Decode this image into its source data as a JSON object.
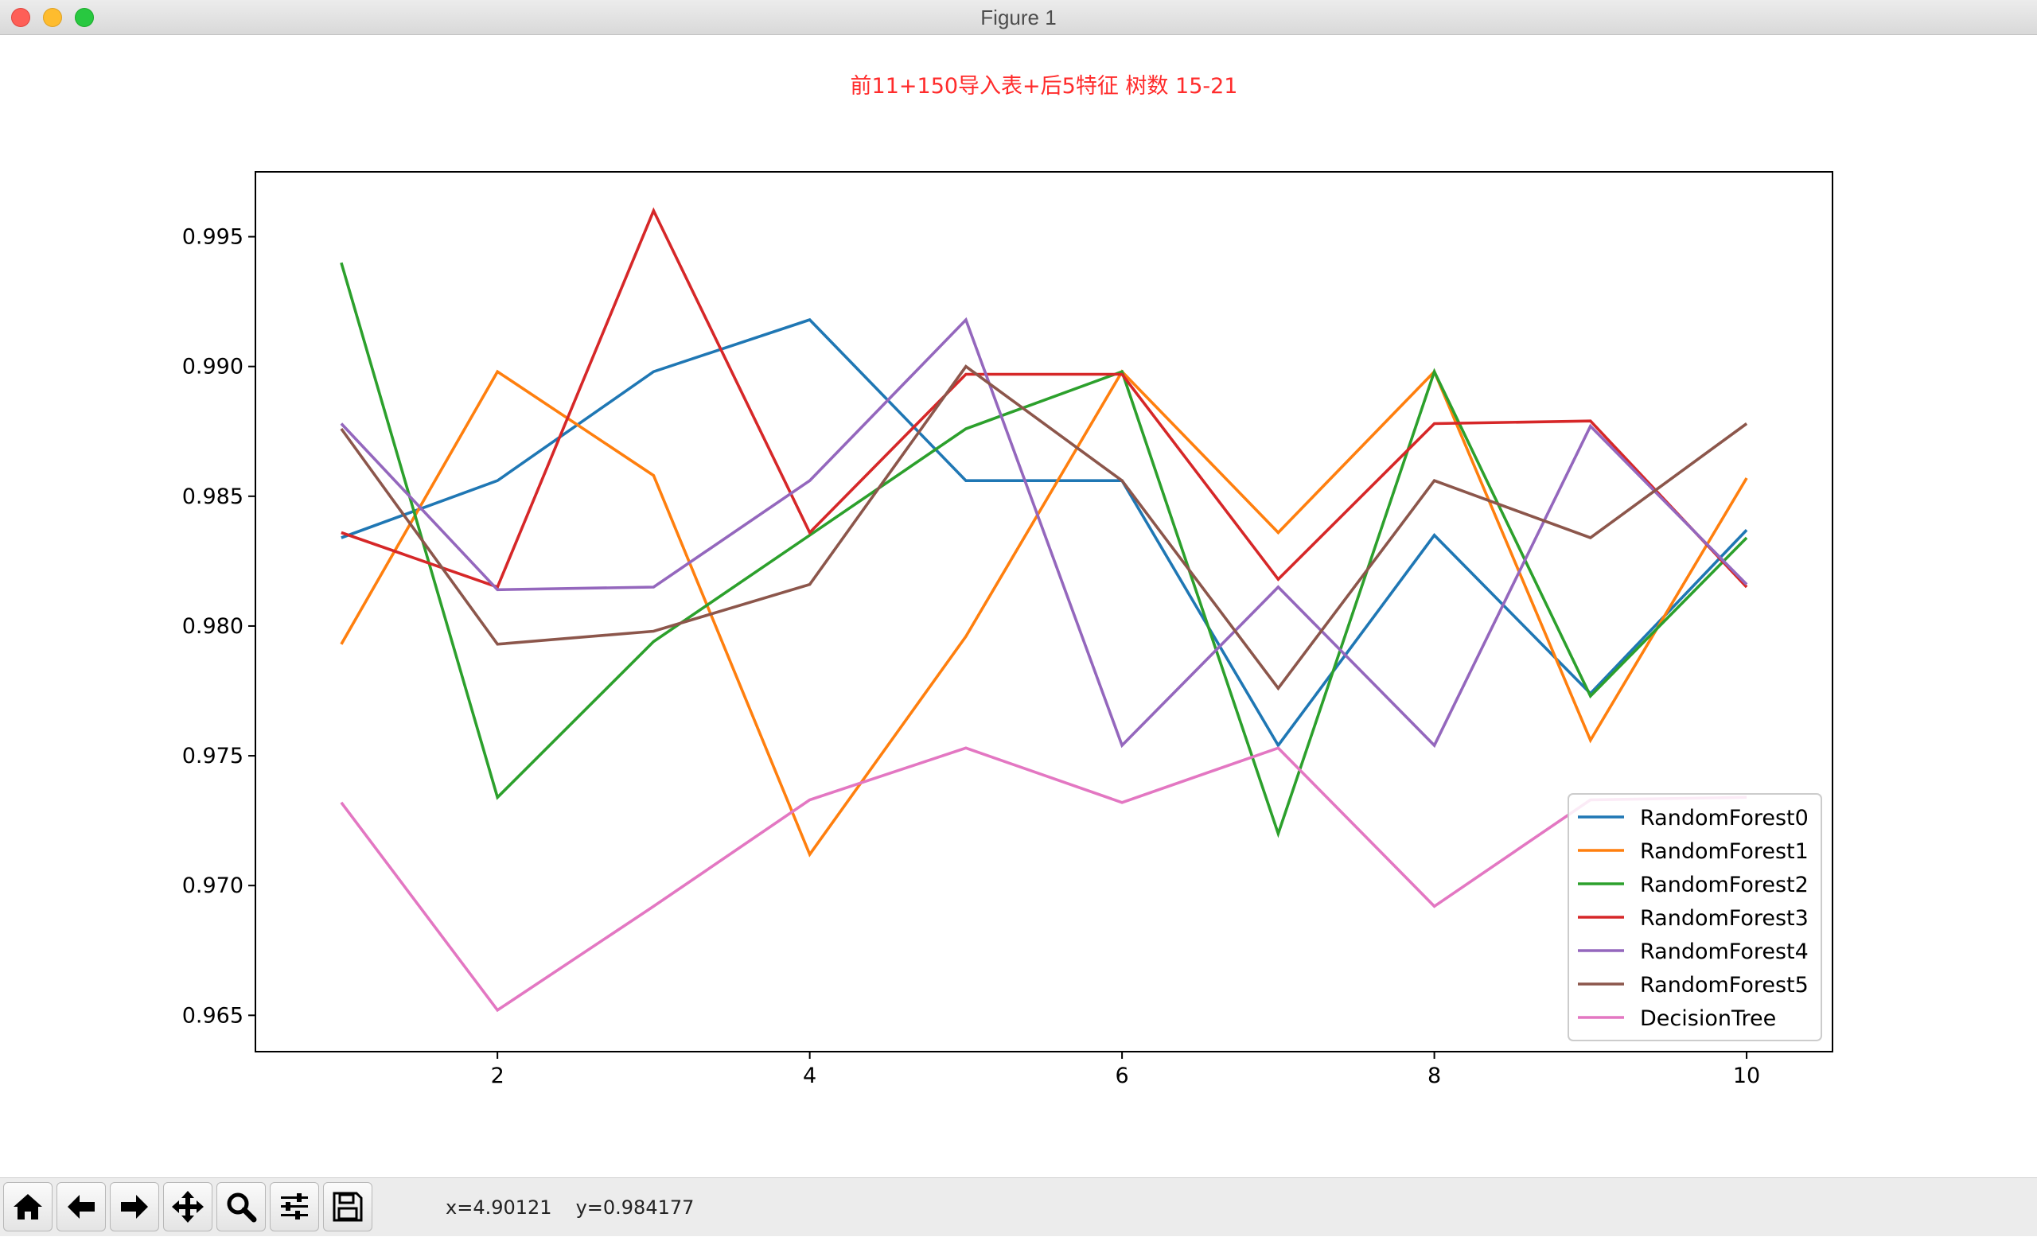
{
  "window": {
    "title": "Figure 1"
  },
  "toolbar": {
    "buttons": [
      {
        "name": "home-button",
        "icon": "home-icon"
      },
      {
        "name": "back-button",
        "icon": "arrow-left-icon"
      },
      {
        "name": "forward-button",
        "icon": "arrow-right-icon"
      },
      {
        "name": "pan-button",
        "icon": "move-icon"
      },
      {
        "name": "zoom-button",
        "icon": "magnifier-icon"
      },
      {
        "name": "configure-subplots-button",
        "icon": "sliders-icon"
      },
      {
        "name": "save-button",
        "icon": "floppy-disk-icon"
      }
    ],
    "x_readout": "x=4.90121",
    "y_readout": "y=0.984177"
  },
  "chart_data": {
    "type": "line",
    "title": "前11+150导入表+后5特征 树数 15-21",
    "title_color": "#ff2b2b",
    "xlabel": "",
    "ylabel": "",
    "x": [
      1,
      2,
      3,
      4,
      5,
      6,
      7,
      8,
      9,
      10
    ],
    "xlim": [
      0.45,
      10.55
    ],
    "ylim": [
      0.9636,
      0.9975
    ],
    "xticks": [
      2,
      4,
      6,
      8,
      10
    ],
    "xtick_labels": [
      "2",
      "4",
      "6",
      "8",
      "10"
    ],
    "yticks": [
      0.965,
      0.97,
      0.975,
      0.98,
      0.985,
      0.99,
      0.995
    ],
    "ytick_labels": [
      "0.965",
      "0.970",
      "0.975",
      "0.980",
      "0.985",
      "0.990",
      "0.995"
    ],
    "grid": false,
    "legend_position": "lower-right",
    "series": [
      {
        "name": "RandomForest0",
        "color": "#1f77b4",
        "values": [
          0.9834,
          0.9856,
          0.9898,
          0.9918,
          0.9856,
          0.9856,
          0.9754,
          0.9835,
          0.9774,
          0.9837
        ]
      },
      {
        "name": "RandomForest1",
        "color": "#ff7f0e",
        "values": [
          0.9793,
          0.9898,
          0.9858,
          0.9712,
          0.9796,
          0.9898,
          0.9836,
          0.9898,
          0.9756,
          0.9857
        ]
      },
      {
        "name": "RandomForest2",
        "color": "#2ca02c",
        "values": [
          0.994,
          0.9734,
          0.9794,
          0.9835,
          0.9876,
          0.9898,
          0.972,
          0.9898,
          0.9773,
          0.9834
        ]
      },
      {
        "name": "RandomForest3",
        "color": "#d62728",
        "values": [
          0.9836,
          0.9815,
          0.996,
          0.9836,
          0.9897,
          0.9897,
          0.9818,
          0.9878,
          0.9879,
          0.9815
        ]
      },
      {
        "name": "RandomForest4",
        "color": "#9467bd",
        "values": [
          0.9878,
          0.9814,
          0.9815,
          0.9856,
          0.9918,
          0.9754,
          0.9815,
          0.9754,
          0.9877,
          0.9816
        ]
      },
      {
        "name": "RandomForest5",
        "color": "#8c564b",
        "values": [
          0.9876,
          0.9793,
          0.9798,
          0.9816,
          0.99,
          0.9856,
          0.9776,
          0.9856,
          0.9834,
          0.9878
        ]
      },
      {
        "name": "DecisionTree",
        "color": "#e377c2",
        "values": [
          0.9732,
          0.9652,
          0.9692,
          0.9733,
          0.9753,
          0.9732,
          0.9753,
          0.9692,
          0.9733,
          0.9734
        ]
      }
    ]
  }
}
